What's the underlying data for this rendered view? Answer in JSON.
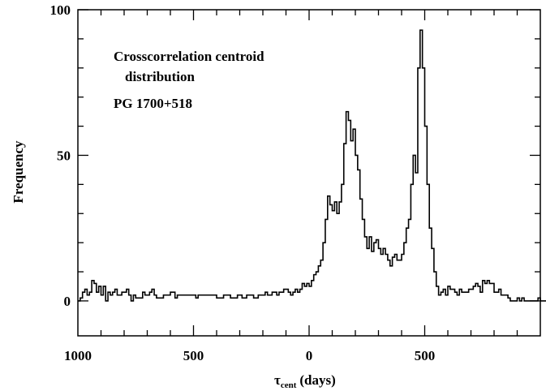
{
  "chart_data": {
    "type": "histogram",
    "title": "",
    "annotation_lines": [
      "Crosscorrelation centroid",
      "distribution",
      "PG 1700+518"
    ],
    "ylabel": "Frequency",
    "xlabel_main": "τ",
    "xlabel_sub": "cent",
    "xlabel_unit": "(days)",
    "xlim": [
      -1000,
      1000
    ],
    "ylim": [
      -12,
      100
    ],
    "x_ticks": [
      {
        "value": -1000,
        "label": "1000"
      },
      {
        "value": -500,
        "label": "500"
      },
      {
        "value": 0,
        "label": "0"
      },
      {
        "value": 500,
        "label": "500"
      }
    ],
    "y_ticks": [
      {
        "value": 0,
        "label": "0"
      },
      {
        "value": 50,
        "label": "50"
      },
      {
        "value": 100,
        "label": "100"
      }
    ],
    "grid": false,
    "bin_width": 10,
    "x_start": -1000,
    "values": [
      0,
      1,
      3,
      4,
      2,
      3,
      7,
      6,
      3,
      5,
      2,
      5,
      0,
      3,
      2,
      3,
      4,
      2,
      2,
      3,
      3,
      4,
      2,
      0,
      2,
      1,
      1,
      1,
      3,
      2,
      2,
      3,
      4,
      2,
      1,
      1,
      1,
      2,
      2,
      2,
      3,
      3,
      1,
      2,
      2,
      2,
      2,
      2,
      2,
      2,
      2,
      1,
      2,
      2,
      2,
      2,
      2,
      2,
      2,
      2,
      1,
      1,
      1,
      2,
      2,
      2,
      1,
      1,
      1,
      2,
      2,
      1,
      1,
      2,
      2,
      2,
      1,
      1,
      2,
      2,
      2,
      3,
      2,
      2,
      3,
      3,
      2,
      3,
      3,
      4,
      4,
      3,
      2,
      3,
      4,
      3,
      4,
      6,
      5,
      6,
      5,
      7,
      9,
      10,
      12,
      14,
      20,
      28,
      36,
      33,
      31,
      34,
      30,
      34,
      40,
      54,
      65,
      62,
      55,
      59,
      50,
      45,
      35,
      28,
      22,
      18,
      22,
      17,
      20,
      21,
      18,
      16,
      18,
      16,
      14,
      12,
      15,
      16,
      14,
      14,
      16,
      20,
      25,
      28,
      40,
      50,
      44,
      80,
      93,
      80,
      60,
      40,
      25,
      18,
      10,
      5,
      2,
      3,
      4,
      2,
      5,
      4,
      4,
      3,
      2,
      4,
      3,
      3,
      3,
      4,
      4,
      5,
      6,
      5,
      3,
      7,
      6,
      7,
      6,
      6,
      3,
      3,
      4,
      2,
      2,
      2,
      1,
      0,
      0,
      0,
      1,
      0,
      1,
      0,
      0,
      0,
      0,
      0,
      0,
      1,
      0,
      0,
      0,
      0,
      0,
      0,
      0,
      0,
      0,
      0,
      0,
      0,
      1,
      0,
      0,
      0,
      0,
      0,
      1,
      0,
      0,
      0
    ]
  }
}
